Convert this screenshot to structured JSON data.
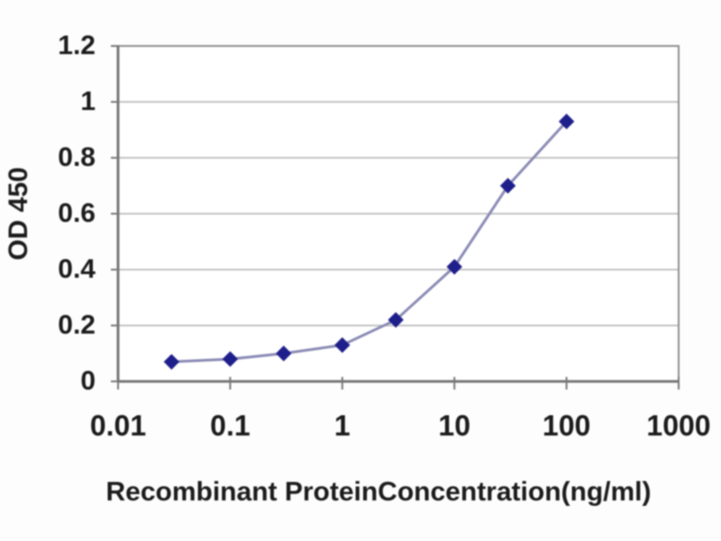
{
  "chart_data": {
    "type": "line",
    "title": "",
    "xlabel": "Recombinant ProteinConcentration(ng/ml)",
    "ylabel": "OD 450",
    "x_scale": "log",
    "xlim": [
      0.01,
      1000
    ],
    "ylim": [
      0,
      1.2
    ],
    "x_ticks": [
      "0.01",
      "0.1",
      "1",
      "10",
      "100",
      "1000"
    ],
    "y_ticks": [
      "0",
      "0.2",
      "0.4",
      "0.6",
      "0.8",
      "1",
      "1.2"
    ],
    "grid": "horizontal gridlines only",
    "legend": "none",
    "series": [
      {
        "name": "OD 450",
        "marker": "diamond",
        "x": [
          0.03,
          0.1,
          0.3,
          1,
          3,
          10,
          30,
          100
        ],
        "y": [
          0.07,
          0.08,
          0.1,
          0.13,
          0.22,
          0.41,
          0.7,
          0.93
        ]
      }
    ],
    "colors": {
      "line": "#8a8ab5",
      "marker": "#1f1f8c",
      "grid": "#c4c4c4",
      "border": "#8f8f8f",
      "axis": "#787878",
      "text": "#1c1c1c",
      "plot_background": "#ffffff"
    }
  }
}
